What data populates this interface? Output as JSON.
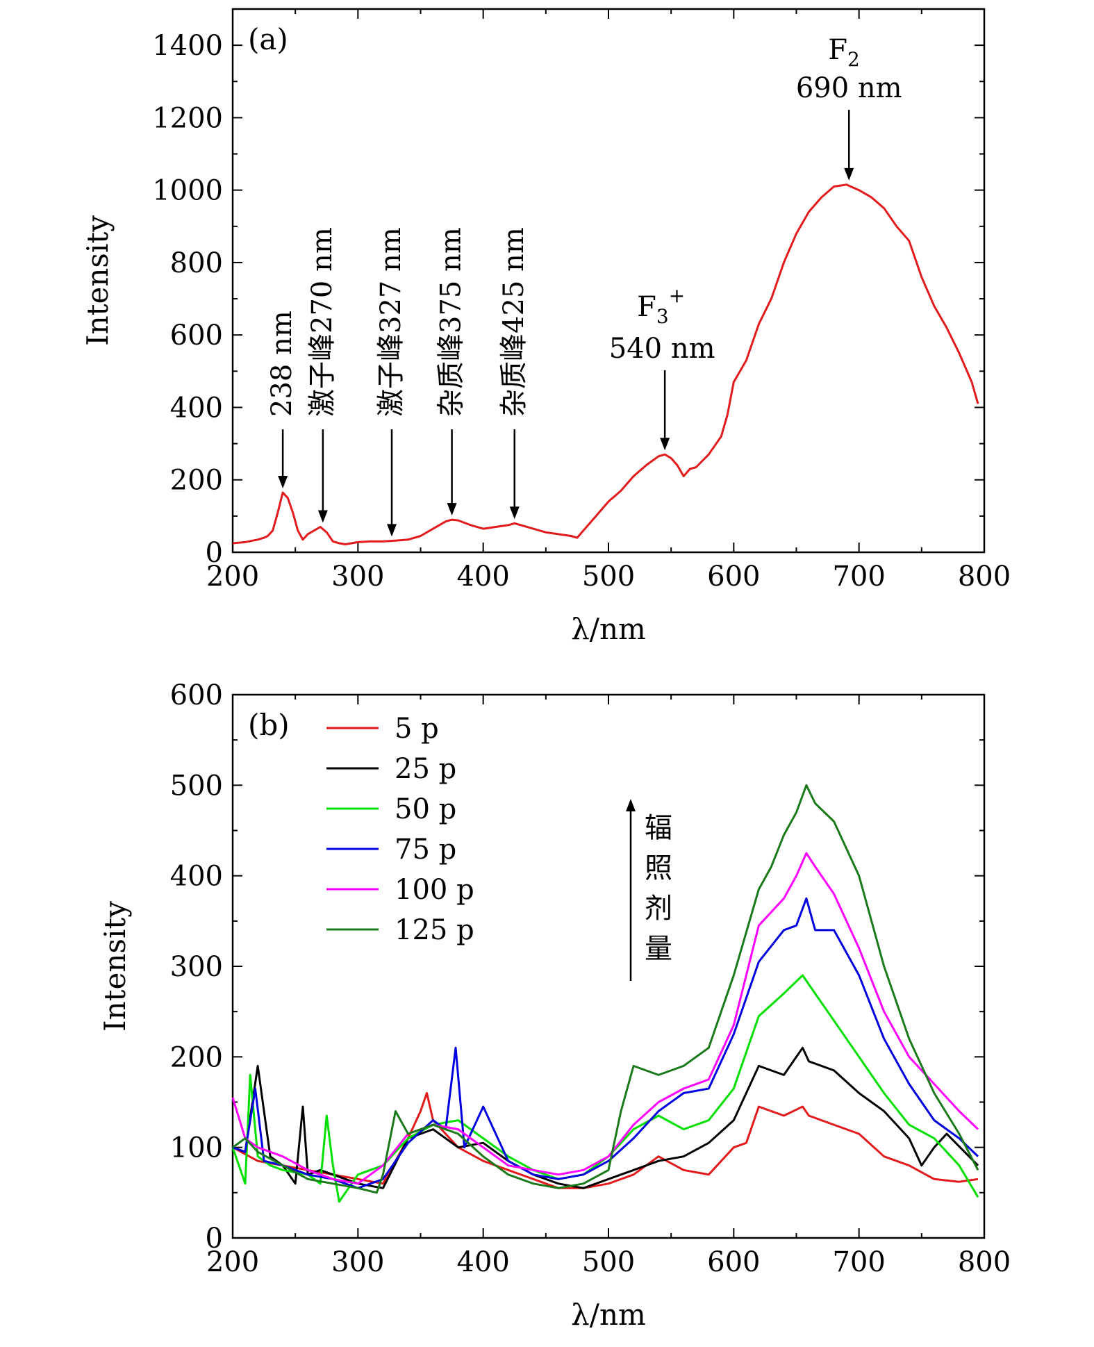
{
  "chart_data": [
    {
      "type": "line",
      "panel_label": "(a)",
      "xlabel": "λ/nm",
      "ylabel": "Intensity",
      "xlim": [
        200,
        800
      ],
      "ylim": [
        0,
        1500
      ],
      "xticks": [
        200,
        300,
        400,
        500,
        600,
        700,
        800
      ],
      "yticks": [
        0,
        200,
        400,
        600,
        800,
        1000,
        1200,
        1400
      ],
      "grid": false,
      "color": "#e31a1c",
      "series": [
        {
          "x": [
            200,
            210,
            220,
            225,
            228,
            232,
            236,
            240,
            244,
            248,
            252,
            256,
            260,
            265,
            270,
            275,
            280,
            285,
            290,
            295,
            300,
            310,
            320,
            330,
            340,
            350,
            360,
            370,
            375,
            380,
            390,
            400,
            410,
            420,
            425,
            430,
            440,
            450,
            460,
            470,
            475,
            480,
            490,
            500,
            510,
            520,
            530,
            540,
            545,
            550,
            555,
            560,
            565,
            570,
            580,
            590,
            595,
            600,
            610,
            620,
            630,
            640,
            650,
            660,
            670,
            680,
            690,
            700,
            710,
            720,
            730,
            740,
            750,
            760,
            770,
            780,
            790,
            795
          ],
          "y": [
            25,
            28,
            35,
            40,
            45,
            60,
            110,
            165,
            150,
            110,
            60,
            35,
            50,
            60,
            70,
            55,
            30,
            25,
            22,
            25,
            28,
            30,
            30,
            32,
            35,
            45,
            65,
            85,
            90,
            88,
            75,
            65,
            70,
            75,
            80,
            75,
            65,
            55,
            50,
            45,
            40,
            60,
            100,
            140,
            170,
            210,
            240,
            265,
            270,
            260,
            240,
            210,
            230,
            235,
            270,
            320,
            380,
            470,
            530,
            630,
            700,
            800,
            880,
            940,
            980,
            1010,
            1015,
            1000,
            980,
            950,
            900,
            860,
            760,
            680,
            620,
            550,
            470,
            410
          ]
        }
      ],
      "annotations": [
        {
          "text": "238 nm",
          "x": 240,
          "y": 165
        },
        {
          "text": "激子峰270 nm",
          "x": 272,
          "y": 70
        },
        {
          "text": "激子峰327 nm",
          "x": 327,
          "y": 32
        },
        {
          "text": "杂质峰375 nm",
          "x": 375,
          "y": 90
        },
        {
          "text": "杂质峰425 nm",
          "x": 425,
          "y": 80
        },
        {
          "label": "F",
          "sub": "3",
          "sup": "+",
          "text": "540 nm",
          "x": 545,
          "y": 270
        },
        {
          "label": "F",
          "sub": "2",
          "text": "690 nm",
          "x": 692,
          "y": 1015
        }
      ]
    },
    {
      "type": "line",
      "panel_label": "(b)",
      "xlabel": "λ/nm",
      "ylabel": "Intensity",
      "xlim": [
        200,
        800
      ],
      "ylim": [
        0,
        600
      ],
      "xticks": [
        200,
        300,
        400,
        500,
        600,
        700,
        800
      ],
      "yticks": [
        0,
        100,
        200,
        300,
        400,
        500,
        600
      ],
      "grid": false,
      "legend_position": "top-left",
      "arrow_label": "辐照剂量",
      "series": [
        {
          "name": "5 p",
          "color": "#e31a1c",
          "x": [
            200,
            220,
            240,
            260,
            280,
            300,
            320,
            340,
            350,
            355,
            360,
            380,
            400,
            420,
            440,
            460,
            480,
            500,
            520,
            540,
            560,
            580,
            600,
            610,
            620,
            640,
            655,
            660,
            680,
            700,
            720,
            740,
            760,
            780,
            795
          ],
          "y": [
            100,
            85,
            80,
            75,
            70,
            65,
            60,
            110,
            140,
            160,
            130,
            100,
            85,
            75,
            65,
            55,
            55,
            60,
            70,
            90,
            75,
            70,
            100,
            105,
            145,
            135,
            145,
            135,
            125,
            115,
            90,
            80,
            65,
            62,
            65
          ]
        },
        {
          "name": "25 p",
          "color": "#000000",
          "x": [
            200,
            210,
            220,
            230,
            240,
            250,
            256,
            260,
            270,
            280,
            300,
            320,
            340,
            360,
            380,
            400,
            420,
            440,
            460,
            480,
            500,
            520,
            540,
            560,
            580,
            600,
            620,
            640,
            655,
            660,
            680,
            700,
            720,
            740,
            750,
            760,
            770,
            795
          ],
          "y": [
            100,
            95,
            190,
            90,
            80,
            60,
            145,
            70,
            75,
            70,
            60,
            55,
            110,
            120,
            100,
            105,
            85,
            70,
            60,
            55,
            65,
            75,
            85,
            90,
            105,
            130,
            190,
            180,
            210,
            195,
            185,
            160,
            140,
            110,
            80,
            100,
            115,
            80
          ]
        },
        {
          "name": "50 p",
          "color": "#00e000",
          "x": [
            200,
            210,
            214,
            220,
            230,
            240,
            260,
            270,
            275,
            280,
            285,
            300,
            320,
            340,
            360,
            380,
            400,
            420,
            440,
            460,
            480,
            500,
            520,
            540,
            560,
            580,
            600,
            620,
            640,
            655,
            660,
            680,
            700,
            720,
            740,
            760,
            780,
            795
          ],
          "y": [
            100,
            60,
            180,
            90,
            80,
            75,
            70,
            60,
            135,
            80,
            40,
            70,
            80,
            110,
            125,
            130,
            110,
            90,
            75,
            65,
            70,
            90,
            120,
            135,
            120,
            130,
            165,
            245,
            270,
            290,
            280,
            240,
            200,
            160,
            125,
            110,
            80,
            45
          ]
        },
        {
          "name": "75 p",
          "color": "#0000e0",
          "x": [
            200,
            210,
            218,
            225,
            240,
            260,
            280,
            300,
            320,
            340,
            360,
            370,
            378,
            385,
            400,
            420,
            440,
            460,
            480,
            500,
            520,
            540,
            560,
            580,
            600,
            620,
            640,
            650,
            658,
            665,
            680,
            700,
            720,
            740,
            760,
            780,
            795
          ],
          "y": [
            100,
            95,
            165,
            85,
            80,
            70,
            65,
            55,
            65,
            105,
            130,
            120,
            210,
            100,
            145,
            85,
            70,
            65,
            70,
            85,
            110,
            140,
            160,
            165,
            225,
            305,
            340,
            345,
            375,
            340,
            340,
            290,
            220,
            170,
            130,
            110,
            90
          ]
        },
        {
          "name": "100 p",
          "color": "#ff00ff",
          "x": [
            200,
            210,
            220,
            240,
            260,
            280,
            300,
            320,
            340,
            360,
            380,
            400,
            420,
            440,
            460,
            480,
            500,
            520,
            540,
            560,
            580,
            600,
            620,
            640,
            650,
            658,
            665,
            680,
            700,
            720,
            740,
            760,
            780,
            795
          ],
          "y": [
            155,
            110,
            100,
            90,
            75,
            65,
            60,
            80,
            115,
            125,
            120,
            100,
            80,
            75,
            70,
            75,
            90,
            125,
            150,
            165,
            175,
            235,
            345,
            375,
            400,
            425,
            410,
            380,
            320,
            250,
            200,
            170,
            140,
            120
          ]
        },
        {
          "name": "125 p",
          "color": "#1a7a1a",
          "x": [
            200,
            210,
            220,
            240,
            260,
            280,
            300,
            315,
            320,
            330,
            340,
            360,
            380,
            400,
            420,
            440,
            460,
            480,
            500,
            510,
            520,
            530,
            540,
            560,
            580,
            600,
            620,
            630,
            640,
            650,
            658,
            665,
            680,
            700,
            720,
            740,
            760,
            780,
            795
          ],
          "y": [
            100,
            110,
            95,
            80,
            65,
            60,
            55,
            50,
            70,
            140,
            115,
            125,
            115,
            90,
            70,
            60,
            55,
            60,
            75,
            140,
            190,
            185,
            180,
            190,
            210,
            290,
            385,
            410,
            445,
            470,
            500,
            480,
            460,
            400,
            300,
            220,
            160,
            115,
            75
          ]
        }
      ]
    }
  ]
}
